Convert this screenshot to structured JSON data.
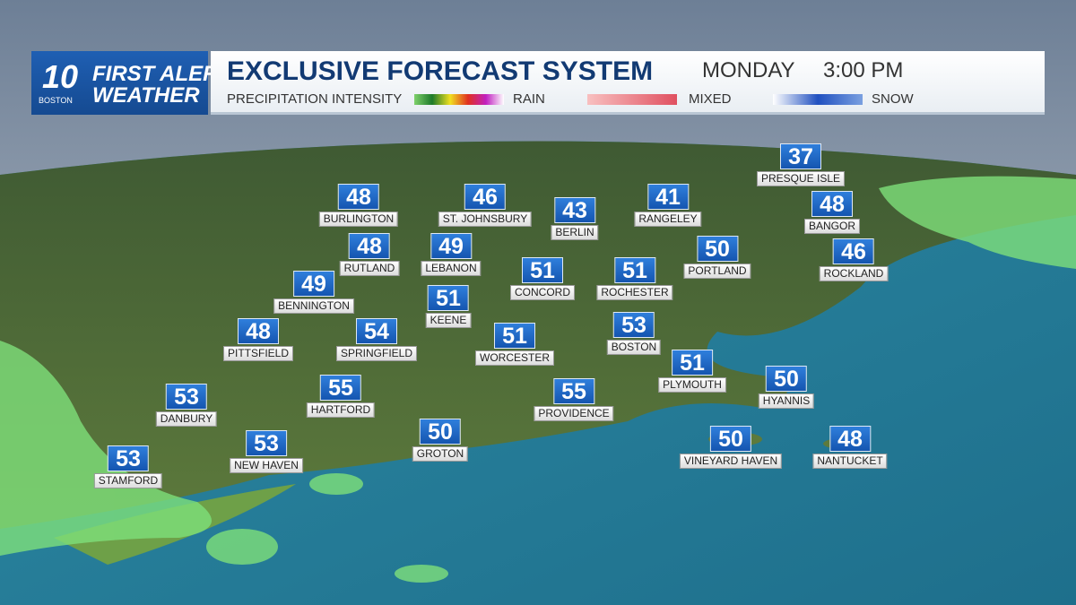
{
  "header": {
    "logo": {
      "number": "10",
      "station": "BOSTON",
      "line1": "FIRST ALERT",
      "line2": "WEATHER"
    },
    "title": "EXCLUSIVE FORECAST SYSTEM",
    "day": "MONDAY",
    "time": "3:00 PM",
    "legend": {
      "label": "PRECIPITATION INTENSITY",
      "items": [
        "RAIN",
        "MIXED",
        "SNOW"
      ]
    }
  },
  "cities": [
    {
      "name": "PRESQUE ISLE",
      "temp": "37"
    },
    {
      "name": "BURLINGTON",
      "temp": "48"
    },
    {
      "name": "ST. JOHNSBURY",
      "temp": "46"
    },
    {
      "name": "BERLIN",
      "temp": "43"
    },
    {
      "name": "RANGELEY",
      "temp": "41"
    },
    {
      "name": "BANGOR",
      "temp": "48"
    },
    {
      "name": "PORTLAND",
      "temp": "50"
    },
    {
      "name": "ROCKLAND",
      "temp": "46"
    },
    {
      "name": "RUTLAND",
      "temp": "48"
    },
    {
      "name": "LEBANON",
      "temp": "49"
    },
    {
      "name": "CONCORD",
      "temp": "51"
    },
    {
      "name": "ROCHESTER",
      "temp": "51"
    },
    {
      "name": "BENNINGTON",
      "temp": "49"
    },
    {
      "name": "KEENE",
      "temp": "51"
    },
    {
      "name": "PITTSFIELD",
      "temp": "48"
    },
    {
      "name": "SPRINGFIELD",
      "temp": "54"
    },
    {
      "name": "WORCESTER",
      "temp": "51"
    },
    {
      "name": "BOSTON",
      "temp": "53"
    },
    {
      "name": "PLYMOUTH",
      "temp": "51"
    },
    {
      "name": "HYANNIS",
      "temp": "50"
    },
    {
      "name": "HARTFORD",
      "temp": "55"
    },
    {
      "name": "PROVIDENCE",
      "temp": "55"
    },
    {
      "name": "DANBURY",
      "temp": "53"
    },
    {
      "name": "GROTON",
      "temp": "50"
    },
    {
      "name": "NEW HAVEN",
      "temp": "53"
    },
    {
      "name": "STAMFORD",
      "temp": "53"
    },
    {
      "name": "VINEYARD HAVEN",
      "temp": "50"
    },
    {
      "name": "NANTUCKET",
      "temp": "48"
    }
  ]
}
